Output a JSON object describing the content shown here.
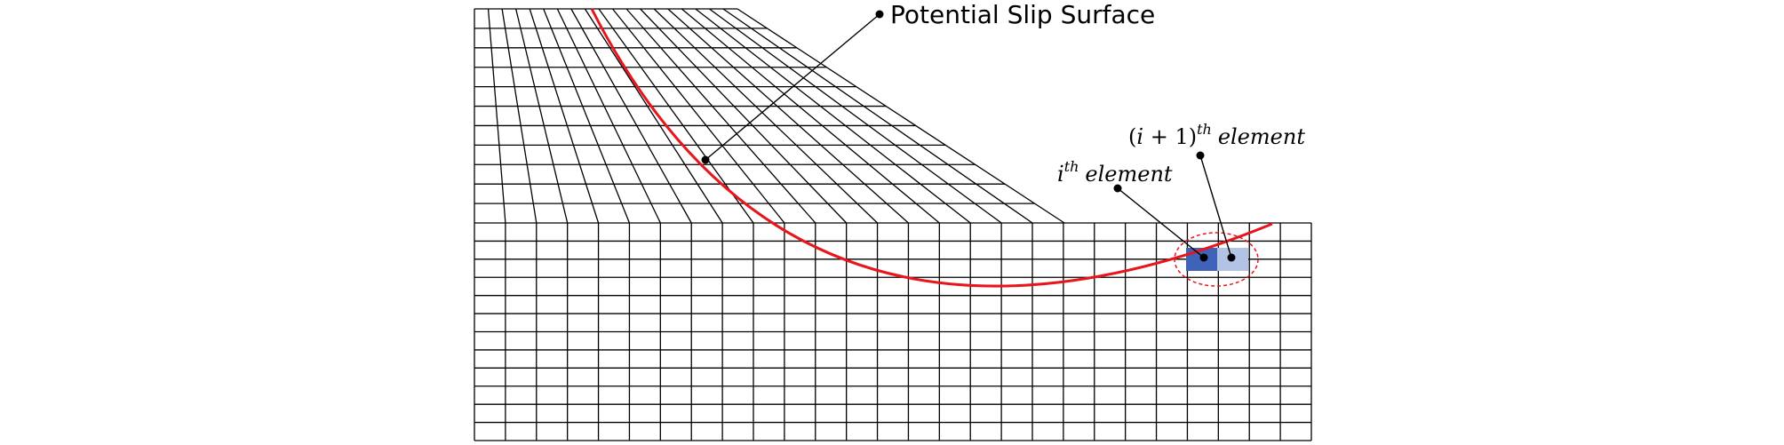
{
  "labels": {
    "slip_surface": "Potential Slip Surface",
    "element_i": {
      "base": "i",
      "sup": "th",
      "word": "element"
    },
    "element_i1": {
      "open": "(",
      "var": "i",
      "plus": " + ",
      "one": "1",
      "close": ")",
      "sup": "th",
      "word": "element"
    }
  },
  "colors": {
    "mesh": "#000000",
    "slip_surface": "#e8161c",
    "element_i_fill": "#3f63b8",
    "element_i1_fill": "#b3c3e6",
    "highlight_ellipse": "#e8161c"
  }
}
